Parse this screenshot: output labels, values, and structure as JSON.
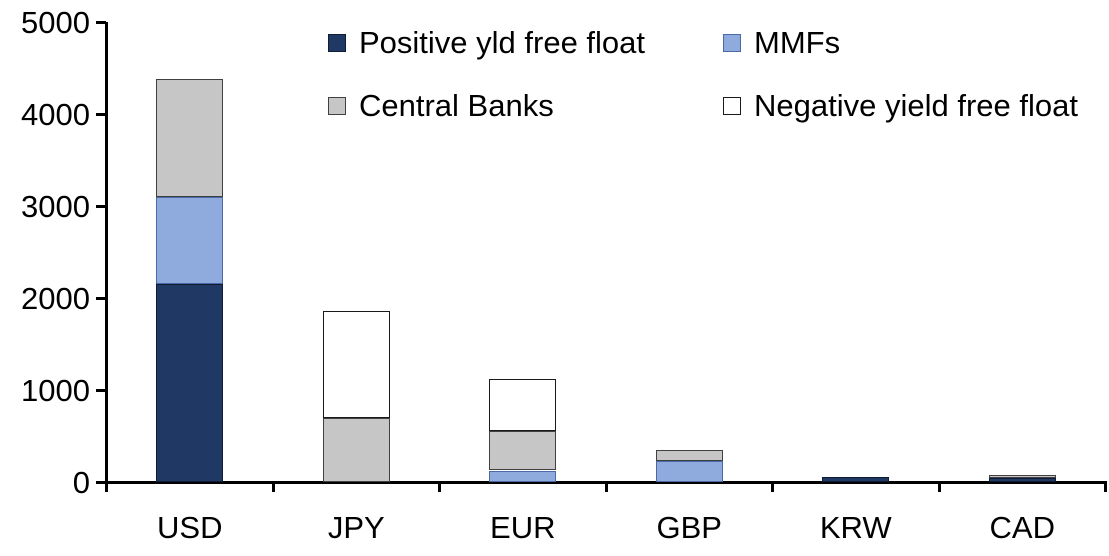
{
  "chart_data": {
    "type": "bar",
    "subtype": "stacked",
    "title": "",
    "xlabel": "",
    "ylabel": "",
    "categories": [
      "USD",
      "JPY",
      "EUR",
      "GBP",
      "KRW",
      "CAD"
    ],
    "series": [
      {
        "name": "Positive yld free float",
        "color": "#1f3864",
        "border": "#101c33",
        "values": [
          2150,
          0,
          0,
          0,
          55,
          45
        ]
      },
      {
        "name": "MMFs",
        "color": "#8faadc",
        "border": "#4a69a5",
        "values": [
          950,
          0,
          125,
          230,
          0,
          0
        ]
      },
      {
        "name": "Central Banks",
        "color": "#c6c6c6",
        "border": "#404040",
        "values": [
          1280,
          700,
          425,
          120,
          0,
          30
        ]
      },
      {
        "name": "Negative yield free float",
        "color": "#ffffff",
        "border": "#1a1a1a",
        "values": [
          0,
          1160,
          570,
          0,
          0,
          0
        ]
      }
    ],
    "totals": [
      4380,
      1860,
      1120,
      350,
      55,
      75
    ],
    "ylim": [
      0,
      5000
    ],
    "ytick_step": 1000,
    "ytick_labels": [
      "0",
      "1000",
      "2000",
      "3000",
      "4000",
      "5000"
    ],
    "grid": false,
    "legend_position": "top",
    "axis_color": "#000000",
    "background_color": "#ffffff"
  },
  "legend": {
    "items": [
      {
        "label": "Positive yld free float"
      },
      {
        "label": "MMFs"
      },
      {
        "label": "Central Banks"
      },
      {
        "label": "Negative yield free float"
      }
    ]
  }
}
